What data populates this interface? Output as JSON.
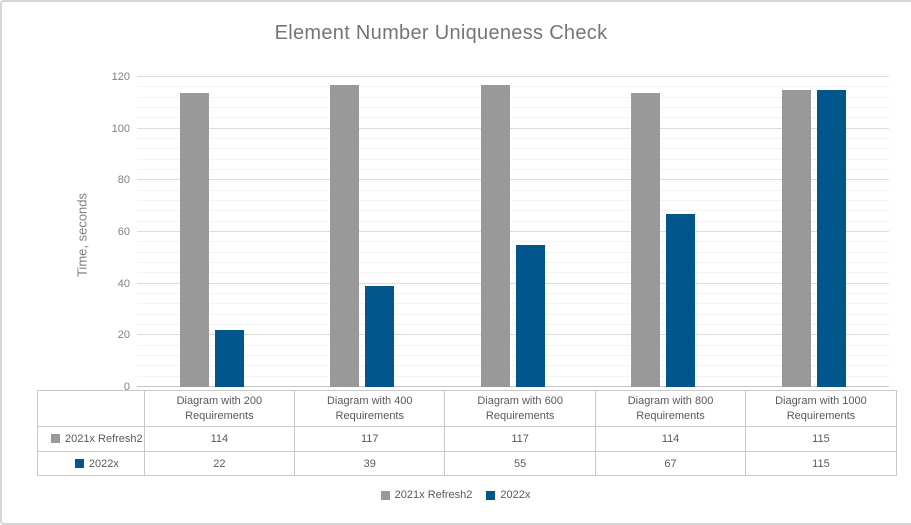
{
  "chart_data": {
    "type": "bar",
    "title": "Element Number Uniqueness Check",
    "ylabel": "Time, seconds",
    "ylim": [
      0,
      120
    ],
    "ytick_step": 20,
    "minor_unit": 4,
    "yticks": [
      0,
      20,
      40,
      60,
      80,
      100,
      120
    ],
    "grid": true,
    "legend_position": "bottom",
    "categories": [
      "Diagram with 200\nRequirements",
      "Diagram with 400\nRequirements",
      "Diagram with 600\nRequirements",
      "Diagram with 800\nRequirements",
      "Diagram with 1000\nRequirements"
    ],
    "series": [
      {
        "name": "2021x Refresh2",
        "color": "#999999",
        "values": [
          114,
          117,
          117,
          114,
          115
        ]
      },
      {
        "name": "2022x",
        "color": "#01568B",
        "values": [
          22,
          39,
          55,
          67,
          115
        ]
      }
    ],
    "data_table_shown": true
  },
  "colors": {
    "series_gray": "#999999",
    "series_blue": "#01568B",
    "major_grid": "#dcdcdc",
    "minor_grid": "#f3f3f3",
    "axis_line": "#c9c9c9",
    "table_border": "#c9c9c9",
    "title_text": "#757575",
    "axis_text": "#808080",
    "table_text": "#595959",
    "frame_border": "#d6d6d6"
  }
}
